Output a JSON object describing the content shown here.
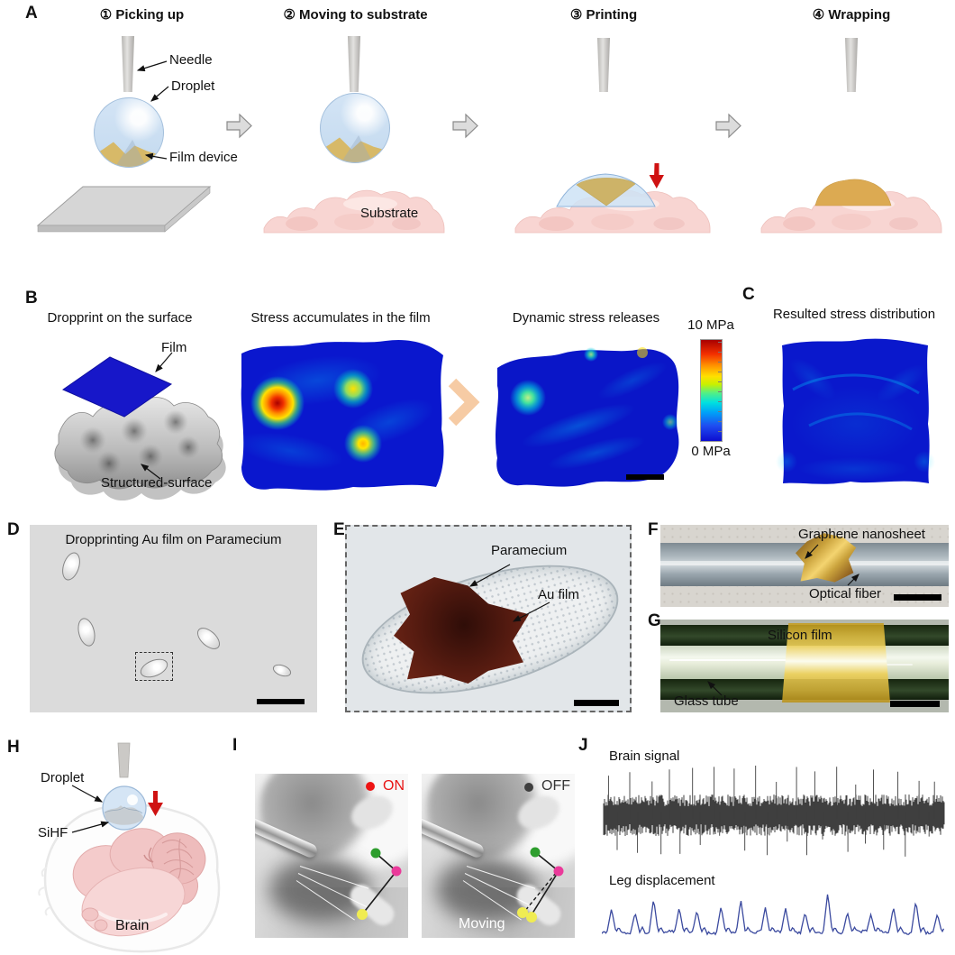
{
  "a": {
    "panel_label": "A",
    "step1_title": "① Picking up",
    "step2_title": "② Moving to substrate",
    "step3_title": "③ Printing",
    "step4_title": "④ Wrapping",
    "needle_label": "Needle",
    "droplet_label": "Droplet",
    "film_device_label": "Film device",
    "substrate_label": "Substrate"
  },
  "b": {
    "panel_label": "B",
    "stage1_title": "Dropprint on the surface",
    "stage2_title": "Stress accumulates in the film",
    "stage3_title": "Dynamic stress releases",
    "film_label": "Film",
    "structured_surface_label": "Structured-surface",
    "colorbar": {
      "max_label": "10 MPa",
      "min_label": "0 MPa"
    }
  },
  "c": {
    "panel_label": "C",
    "title": "Resulted stress distribution"
  },
  "d": {
    "panel_label": "D",
    "title": "Dropprinting Au film on Paramecium"
  },
  "e": {
    "panel_label": "E",
    "paramecium_label": "Paramecium",
    "au_film_label": "Au film"
  },
  "f": {
    "panel_label": "F",
    "graphene_label": "Graphene nanosheet",
    "fiber_label": "Optical fiber"
  },
  "g": {
    "panel_label": "G",
    "silicon_label": "Silicon film",
    "tube_label": "Glass tube"
  },
  "h": {
    "panel_label": "H",
    "droplet_label": "Droplet",
    "sihf_label": "SiHF",
    "brain_label": "Brain"
  },
  "i": {
    "panel_label": "I",
    "on_label": "ON",
    "off_label": "OFF",
    "moving_label": "Moving",
    "marker_colors": {
      "on": "#ee1414",
      "off": "#3f3f3f",
      "joint_hip": "#2e9e2e",
      "joint_knee": "#ea3a9a",
      "joint_paw": "#f0ec52"
    }
  },
  "j": {
    "panel_label": "J",
    "brain_title": "Brain signal",
    "leg_title": "Leg displacement",
    "brain_color": "#3f3f3f",
    "leg_color": "#3b4a9f",
    "brain_spike_count": 17,
    "leg_peak_count": 16
  }
}
